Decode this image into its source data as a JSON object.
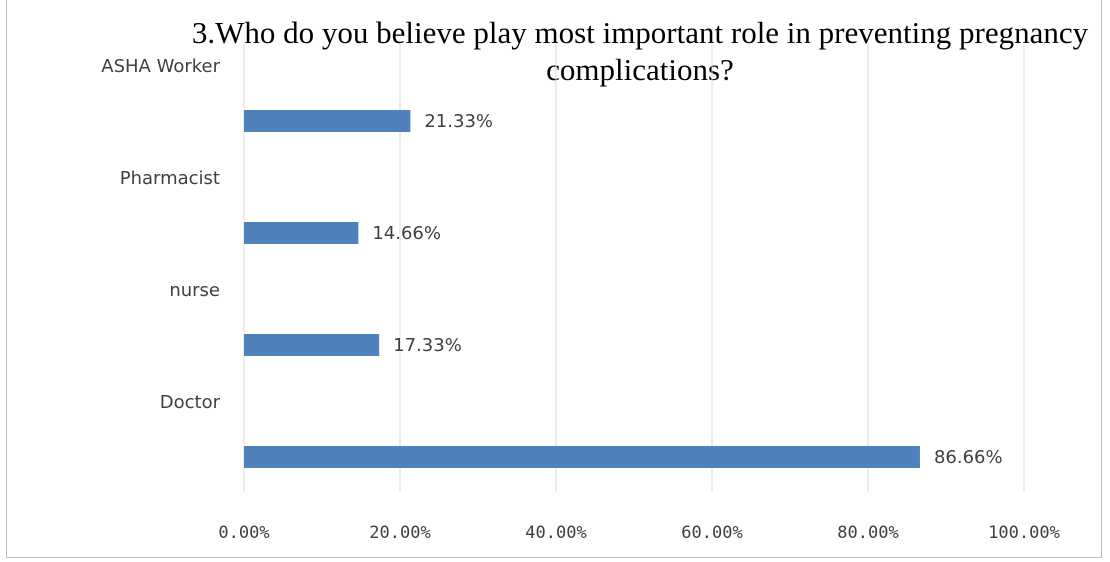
{
  "chart_data": {
    "type": "bar",
    "orientation": "horizontal",
    "title": "3.Who do you believe play most important role in preventing pregnancy complications?",
    "categories": [
      "ASHA Worker",
      "Pharmacist",
      "nurse",
      "Doctor"
    ],
    "values": [
      21.33,
      14.66,
      17.33,
      86.66
    ],
    "data_labels": [
      "21.33%",
      "14.66%",
      "17.33%",
      "86.66%"
    ],
    "xlim": [
      0,
      100
    ],
    "x_ticks": [
      0,
      20,
      40,
      60,
      80,
      100
    ],
    "x_tick_labels": [
      "0.00%",
      "20.00%",
      "40.00%",
      "60.00%",
      "80.00%",
      "100.00%"
    ],
    "xlabel": "",
    "ylabel": "",
    "grid": true,
    "legend": "none",
    "bar_color": "#4f81bd"
  }
}
